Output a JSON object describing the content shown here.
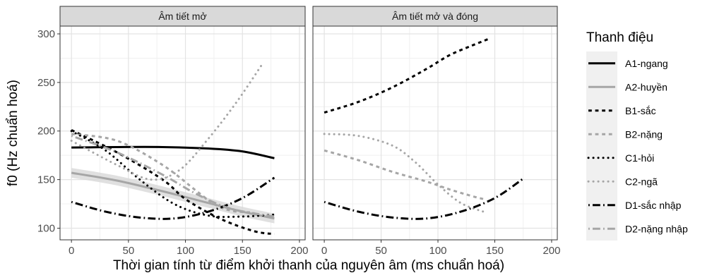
{
  "chart_data": {
    "type": "line",
    "facets": [
      {
        "title": "Âm tiết mở",
        "series": [
          {
            "name": "A1-ngang",
            "x": [
              0,
              40,
              80,
              120,
              150,
              178
            ],
            "y": [
              183,
              183.5,
              183.5,
              182,
              179,
              172
            ]
          },
          {
            "name": "A2-huyền",
            "x": [
              0,
              40,
              80,
              120,
              150,
              178
            ],
            "y": [
              157,
              149,
              138,
              126,
              117,
              110
            ],
            "band": 5
          },
          {
            "name": "B1-sắc",
            "x": [
              0,
              40,
              80,
              100,
              130,
              160,
              178
            ],
            "y": [
              201,
              178,
              150,
              130,
              110,
              97,
              94
            ]
          },
          {
            "name": "B2-nặng",
            "x": [
              0,
              40,
              80,
              110,
              125,
              140,
              160
            ],
            "y": [
              197,
              190,
              165,
              138,
              125,
              118,
              116
            ]
          },
          {
            "name": "C1-hỏi",
            "x": [
              0,
              30,
              60,
              90,
              120,
              150,
              178
            ],
            "y": [
              200,
              180,
              150,
              125,
              113,
              112,
              114
            ]
          },
          {
            "name": "C2-ngã",
            "x": [
              0,
              40,
              70,
              95,
              120,
              145,
              168
            ],
            "y": [
              190,
              165,
              150,
              160,
              192,
              230,
              270
            ]
          },
          {
            "name": "D1-sắc nhập",
            "x": [
              0,
              30,
              60,
              90,
              120,
              150,
              178
            ],
            "y": [
              127,
              117,
              111,
              110,
              117,
              131,
              152
            ]
          },
          {
            "name": "D2-nặng nhập",
            "x": [
              0,
              40,
              80,
              110,
              140,
              178
            ],
            "y": [
              195,
              178,
              155,
              135,
              120,
              112
            ]
          }
        ]
      },
      {
        "title": "Âm tiết mở và đóng",
        "series": [
          {
            "name": "B1-sắc",
            "x": [
              0,
              30,
              60,
              90,
              110,
              130,
              145
            ],
            "y": [
              219,
              230,
              245,
              264,
              278,
              288,
              295
            ]
          },
          {
            "name": "B2-nặng",
            "x": [
              0,
              30,
              60,
              90,
              110,
              130,
              140
            ],
            "y": [
              180,
              170,
              158,
              148,
              140,
              133,
              130
            ]
          },
          {
            "name": "C2-ngã",
            "x": [
              0,
              30,
              60,
              80,
              100,
              120,
              140
            ],
            "y": [
              197,
              195,
              185,
              168,
              145,
              126,
              117
            ]
          },
          {
            "name": "D1-sắc nhập",
            "x": [
              0,
              30,
              60,
              90,
              120,
              150,
              175
            ],
            "y": [
              127,
              117,
              111,
              110,
              117,
              131,
              151
            ]
          }
        ]
      }
    ],
    "xlabel": "Thời gian tính từ điểm khởi thanh của nguyên âm (ms chuẩn hoá)",
    "ylabel": "f0 (Hz chuẩn hoá)",
    "xlim": [
      -10,
      205
    ],
    "ylim": [
      88,
      308
    ],
    "xticks": [
      0,
      50,
      100,
      150,
      200
    ],
    "yticks": [
      100,
      150,
      200,
      250,
      300
    ],
    "grid": true,
    "legend": {
      "title": "Thanh điệu",
      "placement": "right",
      "entries": [
        {
          "name": "A1-ngang",
          "color": "#000000",
          "dash": "solid"
        },
        {
          "name": "A2-huyền",
          "color": "#a6a6a6",
          "dash": "solid"
        },
        {
          "name": "B1-sắc",
          "color": "#000000",
          "dash": "dashed"
        },
        {
          "name": "B2-nặng",
          "color": "#a6a6a6",
          "dash": "dashed"
        },
        {
          "name": "C1-hỏi",
          "color": "#000000",
          "dash": "dotted"
        },
        {
          "name": "C2-ngã",
          "color": "#a6a6a6",
          "dash": "dotted"
        },
        {
          "name": "D1-sắc nhập",
          "color": "#000000",
          "dash": "dotdash"
        },
        {
          "name": "D2-nặng nhập",
          "color": "#a6a6a6",
          "dash": "dotdash"
        }
      ]
    }
  }
}
